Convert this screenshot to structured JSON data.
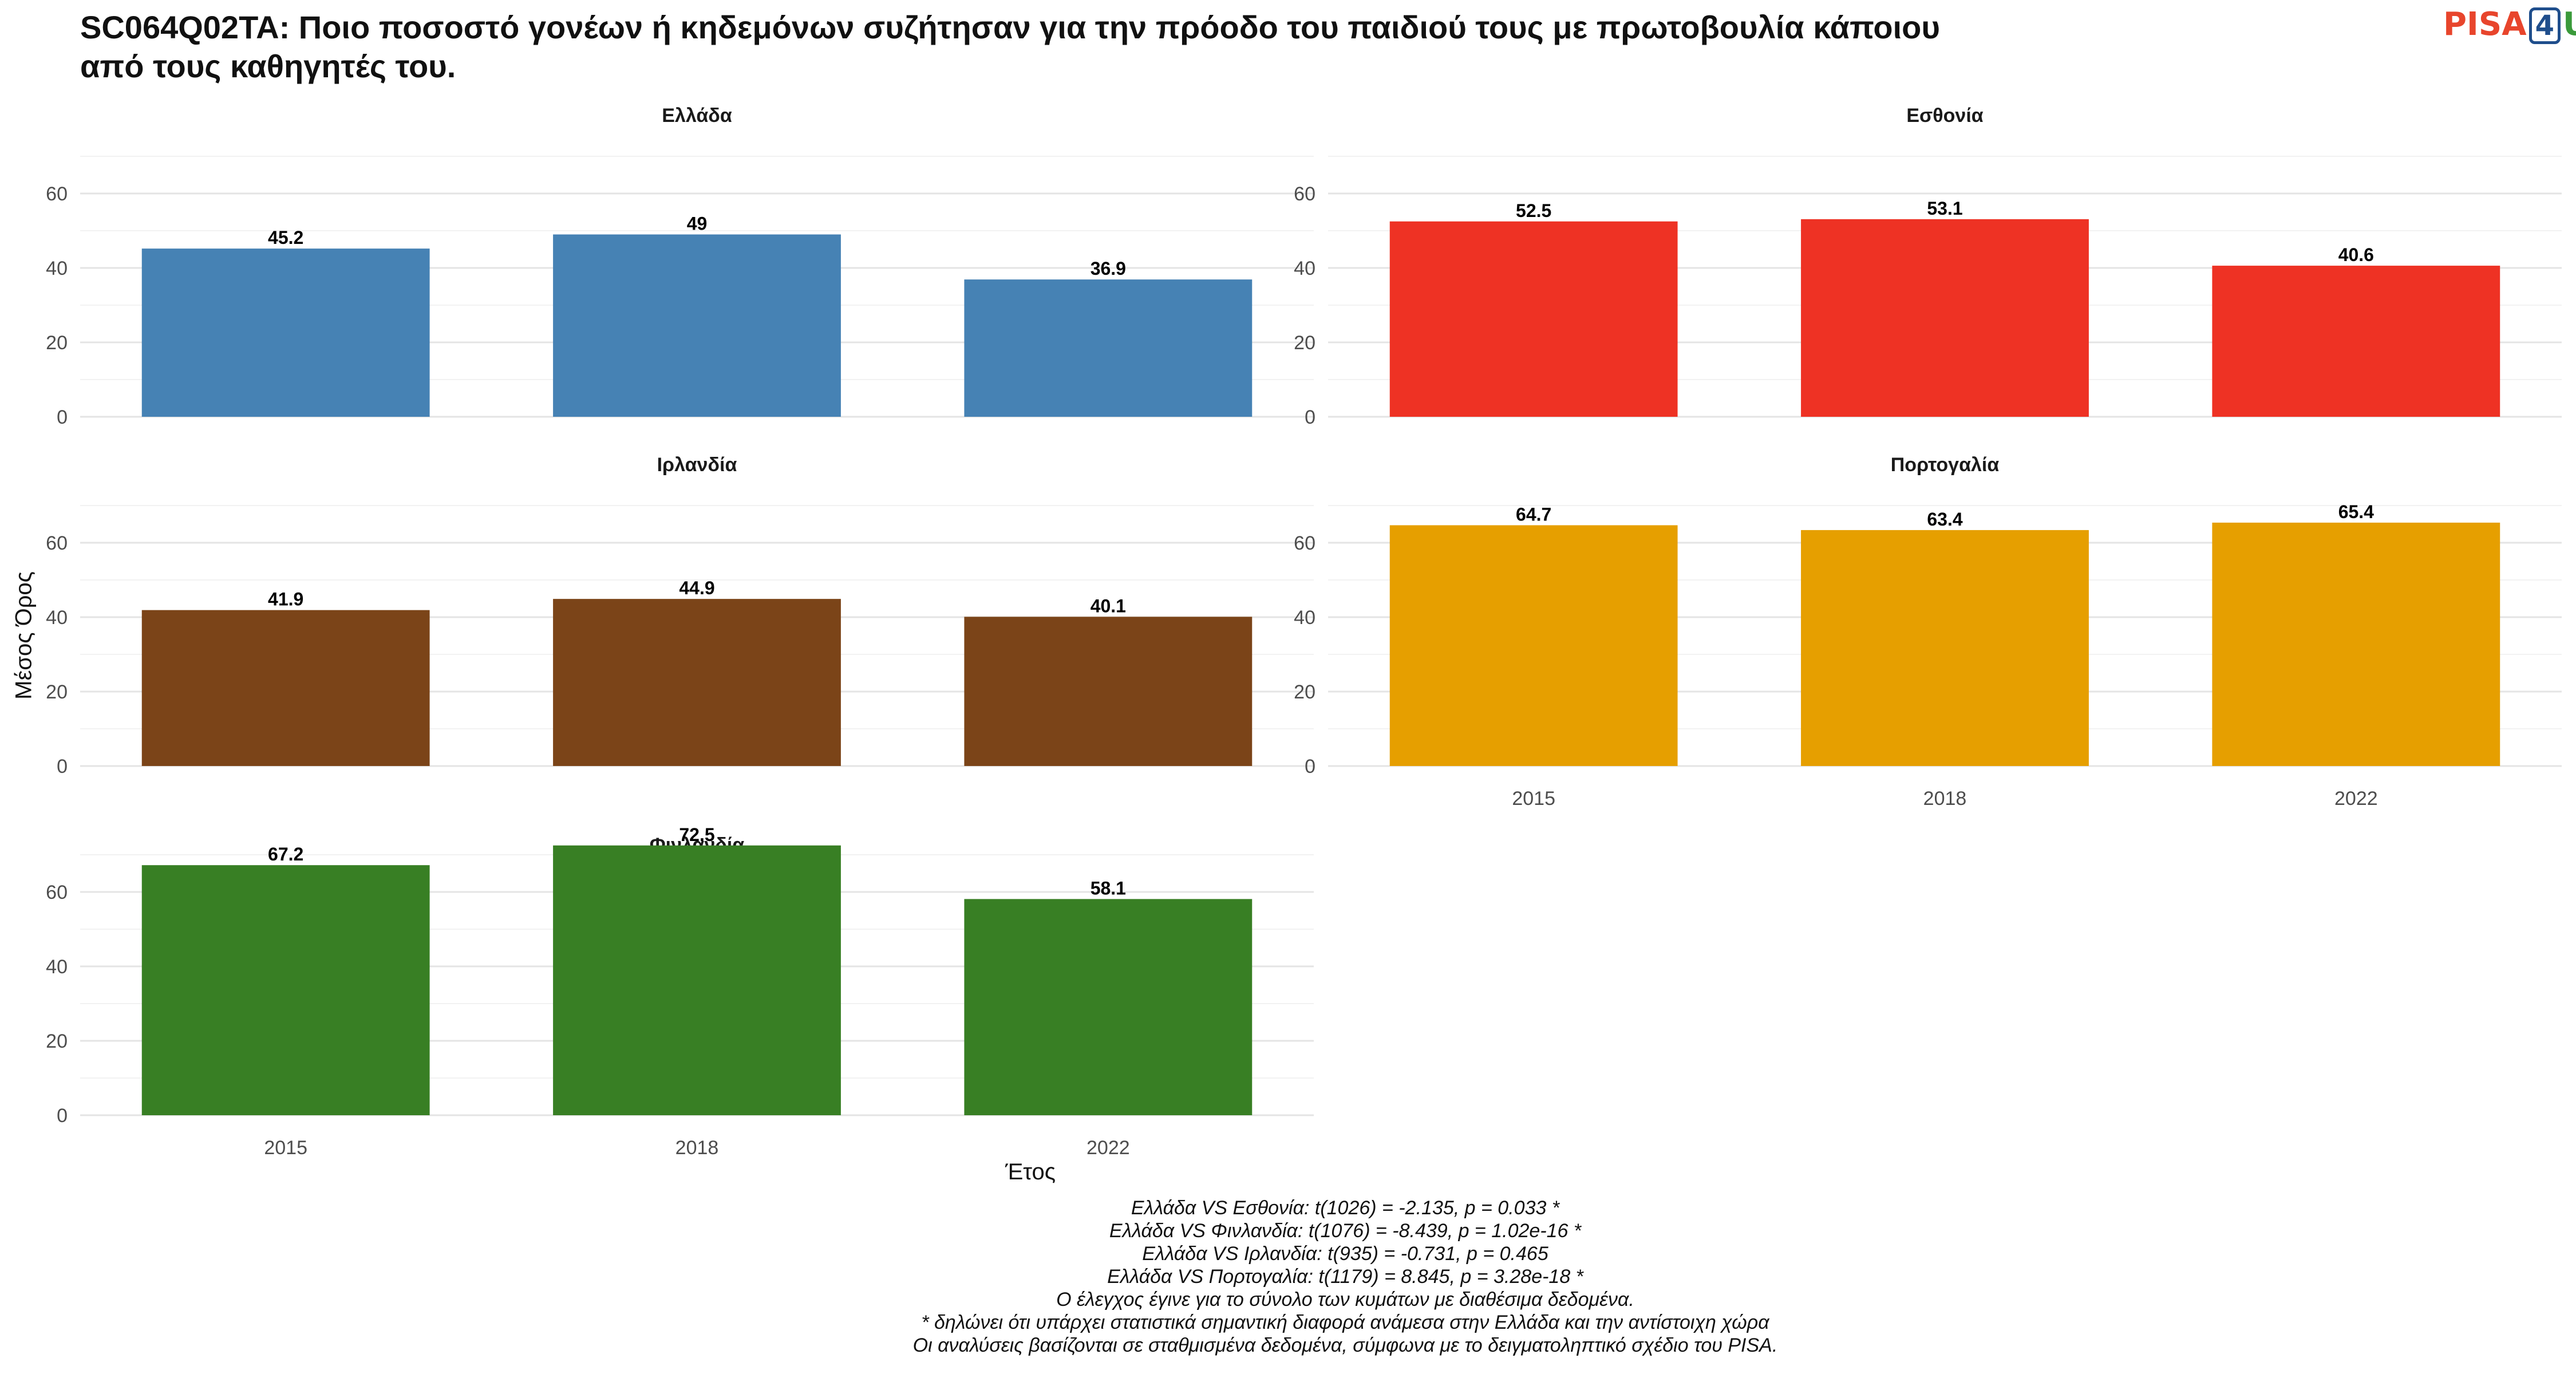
{
  "title_lines": [
    "SC064Q02TA: Ποιο ποσοστό γονέων ή κηδεμόνων συζήτησαν για την πρόοδο του παιδιού τους με πρωτοβουλία κάποιου",
    "από τους καθηγητές του."
  ],
  "logo": {
    "part1": "PISA",
    "part2": "4",
    "part3": "U"
  },
  "colors": {
    "Ελλάδα": "#4682b4",
    "Εσθονία": "#ee3224",
    "Ιρλανδία": "#7b4418",
    "Πορτογαλία": "#e69f00",
    "Φινλανδία": "#387f24"
  },
  "chart_data": {
    "type": "bar",
    "xlabel": "Έτος",
    "ylabel": "Μέσος Όρος",
    "ylim": [
      0,
      70
    ],
    "yticks": [
      0,
      20,
      40,
      60
    ],
    "categories": [
      "2015",
      "2018",
      "2022"
    ],
    "grid": true,
    "facets": [
      {
        "name": "Ελλάδα",
        "values": [
          45.2,
          49,
          36.9
        ],
        "labels": [
          "45.2",
          "49",
          "36.9"
        ]
      },
      {
        "name": "Εσθονία",
        "values": [
          52.5,
          53.1,
          40.6
        ],
        "labels": [
          "52.5",
          "53.1",
          "40.6"
        ]
      },
      {
        "name": "Ιρλανδία",
        "values": [
          41.9,
          44.9,
          40.1
        ],
        "labels": [
          "41.9",
          "44.9",
          "40.1"
        ]
      },
      {
        "name": "Πορτογαλία",
        "values": [
          64.7,
          63.4,
          65.4
        ],
        "labels": [
          "64.7",
          "63.4",
          "65.4"
        ]
      },
      {
        "name": "Φινλανδία",
        "values": [
          67.2,
          72.5,
          58.1
        ],
        "labels": [
          "67.2",
          "72.5",
          "58.1"
        ]
      }
    ]
  },
  "notes": [
    "Ελλάδα VS Εσθονία: t(1026) = -2.135, p = 0.033 *",
    "Ελλάδα VS Φινλανδία: t(1076) = -8.439, p = 1.02e-16 *",
    "Ελλάδα VS Ιρλανδία: t(935) = -0.731, p = 0.465",
    "Ελλάδα VS Πορτογαλία: t(1179) = 8.845, p = 3.28e-18 *",
    "Ο έλεγχος έγινε για το σύνολο των κυμάτων με διαθέσιμα δεδομένα.",
    "* δηλώνει ότι υπάρχει στατιστικά σημαντική διαφορά ανάμεσα στην Ελλάδα και την αντίστοιχη χώρα",
    "Οι αναλύσεις βασίζονται σε σταθμισμένα δεδομένα, σύμφωνα με το δειγματοληπτικό σχέδιο του PISA."
  ]
}
